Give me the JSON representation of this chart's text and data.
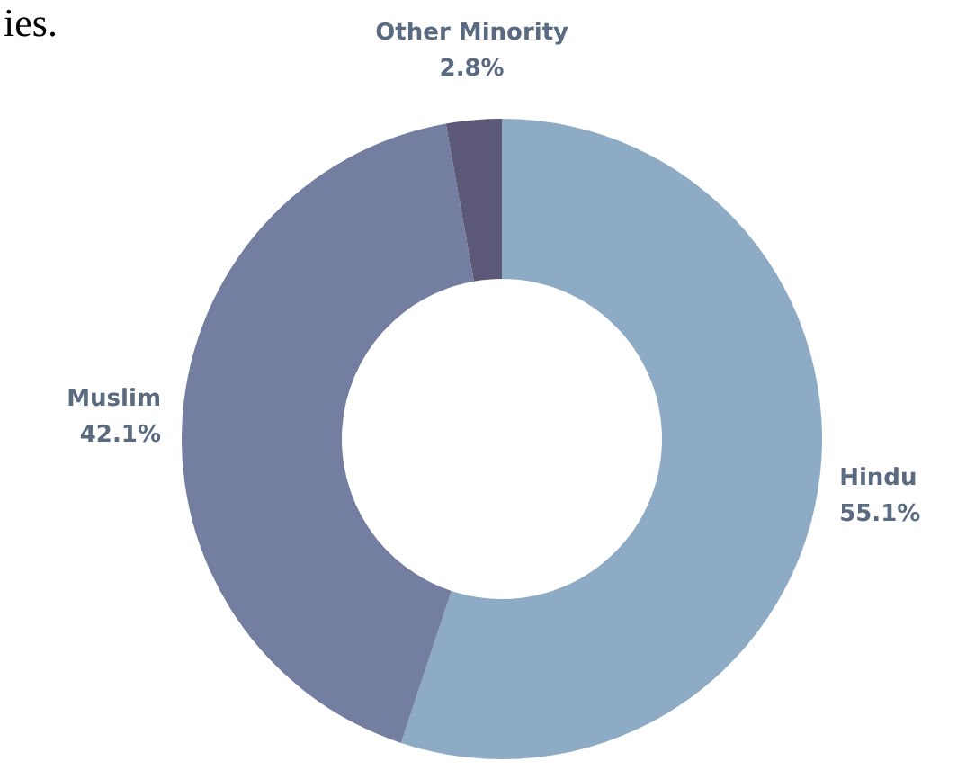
{
  "chart_data": {
    "type": "donut",
    "categories": [
      "Hindu",
      "Muslim",
      "Other Minority"
    ],
    "values": [
      55.1,
      42.1,
      2.8
    ],
    "colors": [
      "#8eabc5",
      "#747ea0",
      "#5b5878"
    ],
    "value_labels": [
      "55.1%",
      "42.1%",
      "2.8%"
    ],
    "annotations": [
      "ies."
    ]
  }
}
